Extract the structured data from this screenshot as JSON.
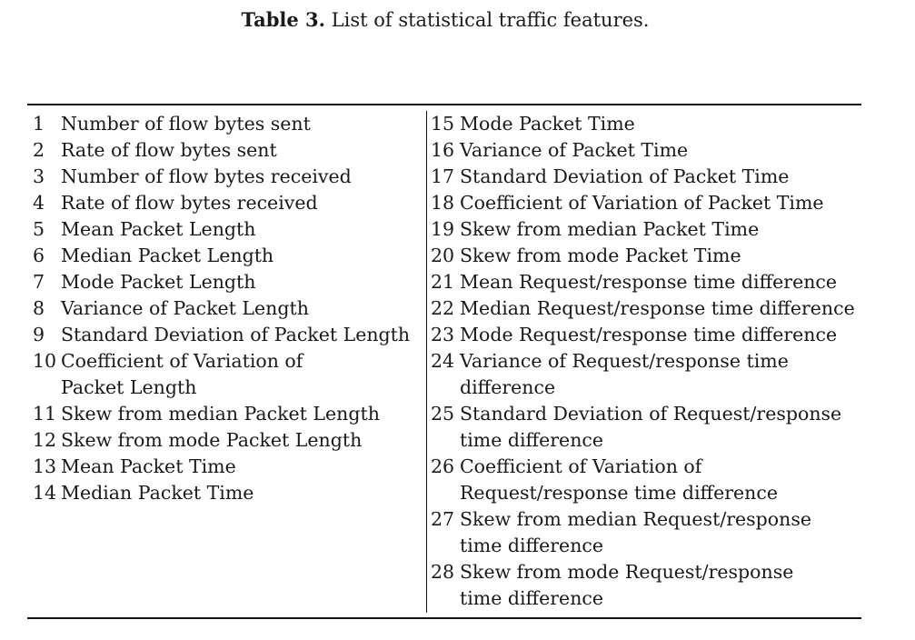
{
  "caption": {
    "label": "Table 3.",
    "text": "List of statistical traffic features."
  },
  "left": [
    {
      "num": "1",
      "lines": [
        "Number of flow bytes sent"
      ]
    },
    {
      "num": "2",
      "lines": [
        "Rate of flow bytes sent"
      ]
    },
    {
      "num": "3",
      "lines": [
        "Number of flow bytes received"
      ]
    },
    {
      "num": "4",
      "lines": [
        "Rate of flow bytes received"
      ]
    },
    {
      "num": "5",
      "lines": [
        "Mean Packet Length"
      ]
    },
    {
      "num": "6",
      "lines": [
        "Median Packet Length"
      ]
    },
    {
      "num": "7",
      "lines": [
        "Mode Packet Length"
      ]
    },
    {
      "num": "8",
      "lines": [
        "Variance of Packet Length"
      ]
    },
    {
      "num": "9",
      "lines": [
        "Standard Deviation of Packet Length"
      ]
    },
    {
      "num": "10",
      "lines": [
        "Coefficient of Variation of",
        "Packet Length"
      ]
    },
    {
      "num": "11",
      "lines": [
        "Skew from median Packet Length",
        ""
      ]
    },
    {
      "num": "12",
      "lines": [
        "Skew from mode Packet Length",
        ""
      ]
    },
    {
      "num": "13",
      "lines": [
        "Mean Packet Time",
        ""
      ]
    },
    {
      "num": "14",
      "lines": [
        "Median Packet Time",
        ""
      ]
    }
  ],
  "right": [
    {
      "num": "15",
      "lines": [
        "Mode Packet Time"
      ]
    },
    {
      "num": "16",
      "lines": [
        "Variance of Packet Time"
      ]
    },
    {
      "num": "17",
      "lines": [
        "Standard Deviation of Packet Time"
      ]
    },
    {
      "num": "18",
      "lines": [
        "Coefficient of Variation of Packet Time"
      ]
    },
    {
      "num": "19",
      "lines": [
        "Skew from median Packet Time"
      ]
    },
    {
      "num": "20",
      "lines": [
        "Skew from mode Packet Time"
      ]
    },
    {
      "num": "21",
      "lines": [
        "Mean Request/response time difference"
      ]
    },
    {
      "num": "22",
      "lines": [
        "Median Request/response time difference"
      ]
    },
    {
      "num": "23",
      "lines": [
        "Mode Request/response time difference"
      ]
    },
    {
      "num": "24",
      "lines": [
        "Variance of Request/response time",
        "difference"
      ]
    },
    {
      "num": "25",
      "lines": [
        "Standard Deviation of Request/response",
        "time difference"
      ]
    },
    {
      "num": "26",
      "lines": [
        "Coefficient of Variation of",
        "Request/response time difference"
      ]
    },
    {
      "num": "27",
      "lines": [
        "Skew from median Request/response",
        "time difference"
      ]
    },
    {
      "num": "28",
      "lines": [
        "Skew from mode Request/response",
        "time difference"
      ]
    }
  ]
}
